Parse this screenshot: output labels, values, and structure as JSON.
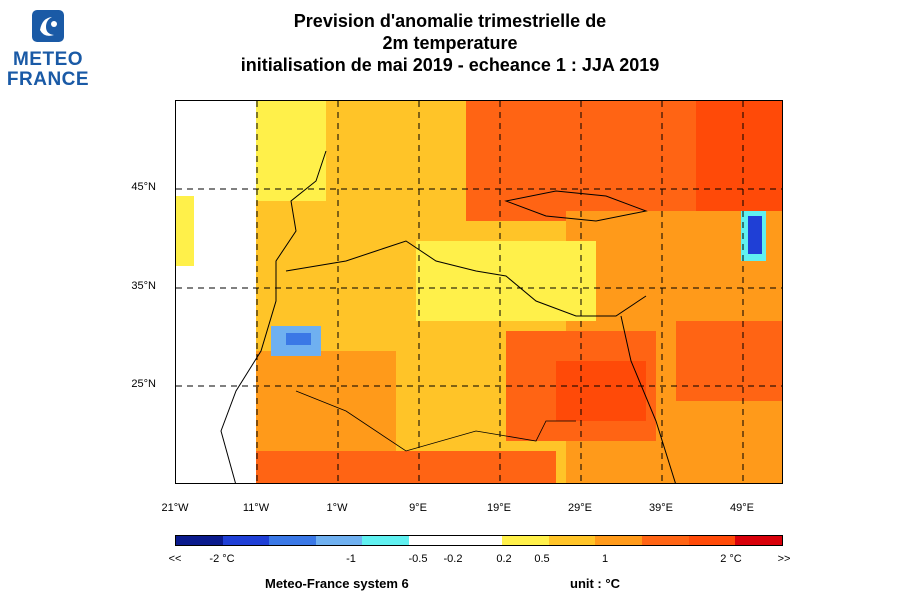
{
  "logo": {
    "line1": "METEO",
    "line2": "FRANCE",
    "color": "#1a5aa6"
  },
  "title": {
    "line1": "Prevision d'anomalie trimestrielle de",
    "line2": "2m temperature",
    "line3": "initialisation de mai 2019  -  echeance 1 : JJA 2019"
  },
  "map": {
    "lat_labels": [
      "45°N",
      "35°N",
      "25°N"
    ],
    "lon_labels": [
      "21°W",
      "11°W",
      "1°W",
      "9°E",
      "19°E",
      "29°E",
      "39°E",
      "49°E"
    ]
  },
  "colorbar": {
    "colors": [
      "#0a1a8c",
      "#1f3fd6",
      "#3a78e6",
      "#6fb0f0",
      "#60f0f0",
      "#ffffff",
      "#ffffff",
      "#fff04a",
      "#ffc428",
      "#ff9a1a",
      "#ff6414",
      "#ff4a08",
      "#d8000a"
    ],
    "labels": [
      "<<",
      "-2 °C",
      "-1",
      "-0.5",
      "-0.2",
      "0.2",
      "0.5",
      "1",
      "2 °C",
      ">>"
    ]
  },
  "footer": {
    "system": "Meteo-France system 6",
    "unit": "unit :  °C"
  }
}
